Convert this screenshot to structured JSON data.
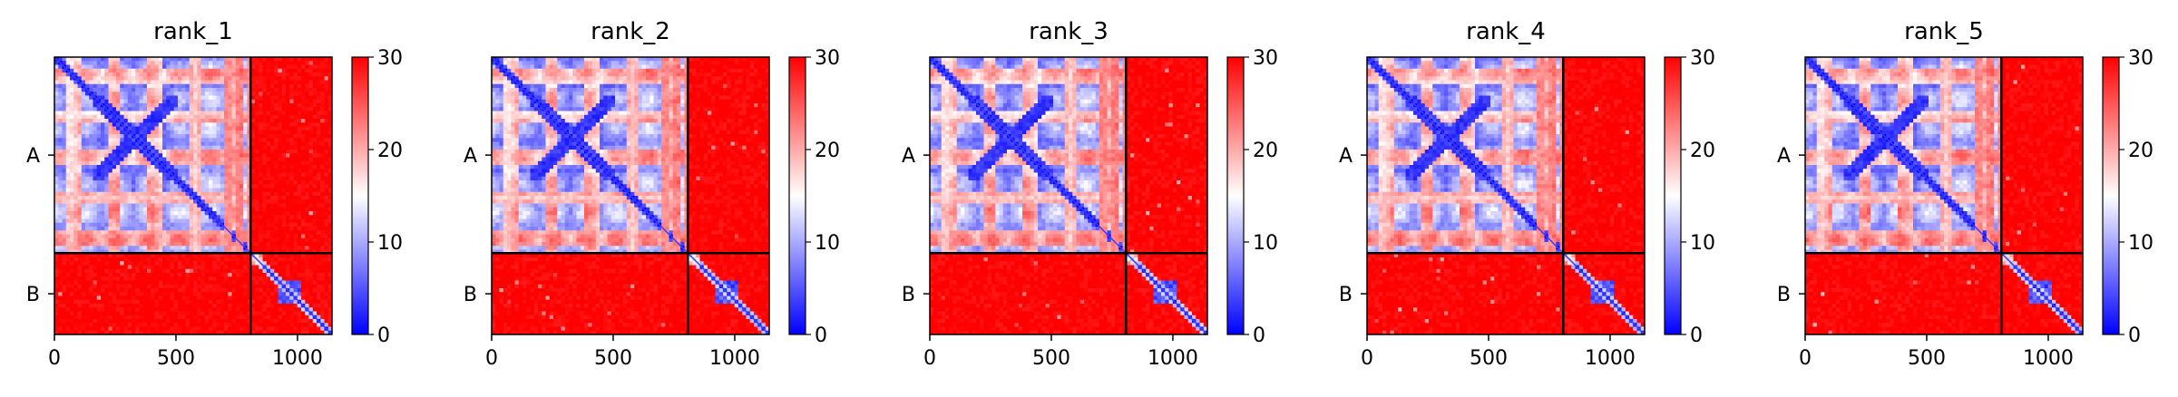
{
  "chart_data": {
    "type": "heatmap",
    "colormap": {
      "name": "bwr",
      "low_color": "#0000ff",
      "mid_color": "#ffffff",
      "high_color": "#ff0000",
      "vmin": 0,
      "vmax": 30,
      "ticks": [
        "0",
        "10",
        "20",
        "30"
      ]
    },
    "x_range": [
      0,
      1142
    ],
    "y_range": [
      0,
      1142
    ],
    "x_ticks": [
      {
        "value": 0,
        "label": "0"
      },
      {
        "value": 500,
        "label": "500"
      },
      {
        "value": 1000,
        "label": "1000"
      }
    ],
    "chains": [
      {
        "label": "A",
        "start": 0,
        "end": 807
      },
      {
        "label": "B",
        "start": 807,
        "end": 1142
      }
    ],
    "panels": [
      {
        "title": "rank_1"
      },
      {
        "title": "rank_2"
      },
      {
        "title": "rank_3"
      },
      {
        "title": "rank_4"
      },
      {
        "title": "rank_5"
      }
    ]
  }
}
